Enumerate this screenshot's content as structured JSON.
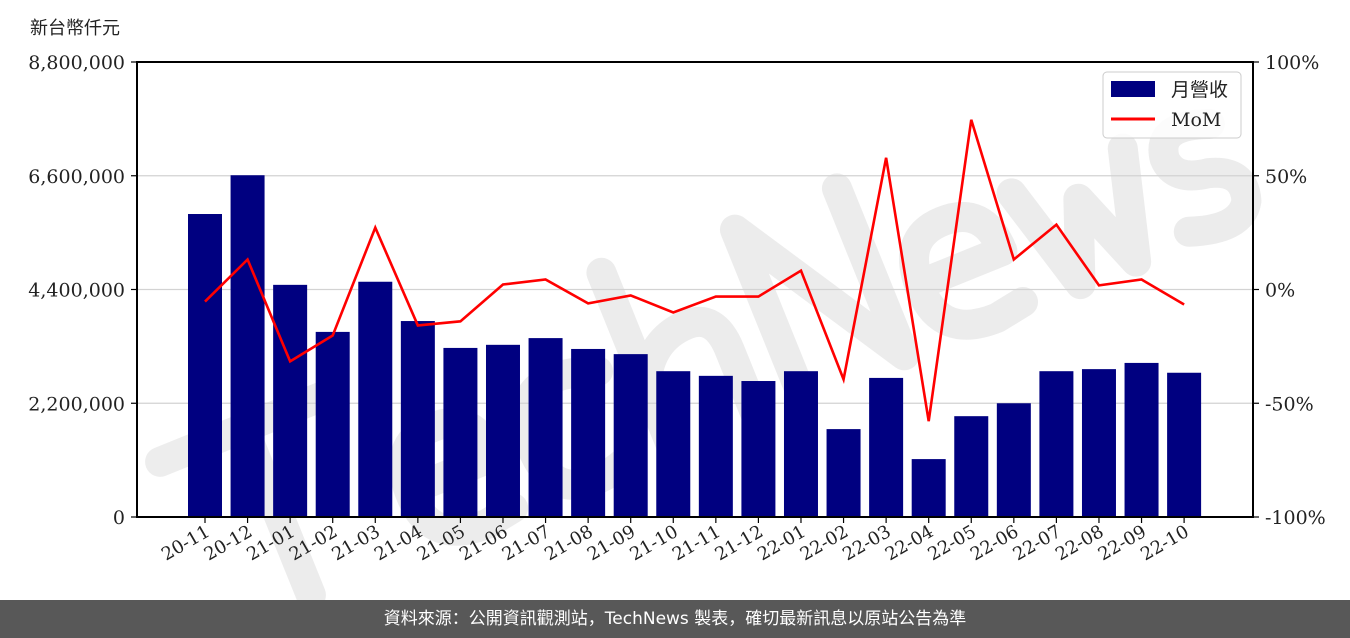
{
  "chart_data": {
    "type": "bar",
    "title": "",
    "ylabel": "新台幣仟元",
    "categories": [
      "20-11",
      "20-12",
      "21-01",
      "21-02",
      "21-03",
      "21-04",
      "21-05",
      "21-06",
      "21-07",
      "21-08",
      "21-09",
      "21-10",
      "21-11",
      "21-12",
      "22-01",
      "22-02",
      "22-03",
      "22-04",
      "22-05",
      "22-06",
      "22-07",
      "22-08",
      "22-09",
      "22-10"
    ],
    "series": [
      {
        "name": "月營收",
        "type": "bar",
        "axis": "left",
        "color": "#000080",
        "values": [
          5860000,
          6610000,
          4490000,
          3580000,
          4550000,
          3790000,
          3270000,
          3330000,
          3460000,
          3250000,
          3150000,
          2820000,
          2730000,
          2630000,
          2820000,
          1700000,
          2690000,
          1120000,
          1950000,
          2200000,
          2820000,
          2860000,
          2980000,
          2790000
        ]
      },
      {
        "name": "MoM",
        "type": "line",
        "axis": "right",
        "color": "#ff0000",
        "values": [
          -5.3,
          13.2,
          -31.6,
          -20.2,
          27.2,
          -15.8,
          -14.0,
          2.2,
          4.4,
          -6.1,
          -2.6,
          -10.1,
          -3.1,
          -3.1,
          8.3,
          -39.5,
          57.9,
          -57.9,
          74.6,
          13.2,
          28.5,
          1.8,
          4.4,
          -6.6
        ]
      }
    ],
    "left_axis": {
      "ylim": [
        0,
        8800000
      ],
      "ticks": [
        "0",
        "2,200,000",
        "4,400,000",
        "6,600,000",
        "8,800,000"
      ]
    },
    "right_axis": {
      "ylim": [
        -100,
        100
      ],
      "ticks": [
        "-100%",
        "-50%",
        "0%",
        "50%",
        "100%"
      ]
    },
    "grid": true,
    "legend_position": "top-right"
  },
  "unit_label": "新台幣仟元",
  "watermark": "TechNews",
  "footer": "資料來源：公開資訊觀測站，TechNews 製表，確切最新訊息以原站公告為準"
}
